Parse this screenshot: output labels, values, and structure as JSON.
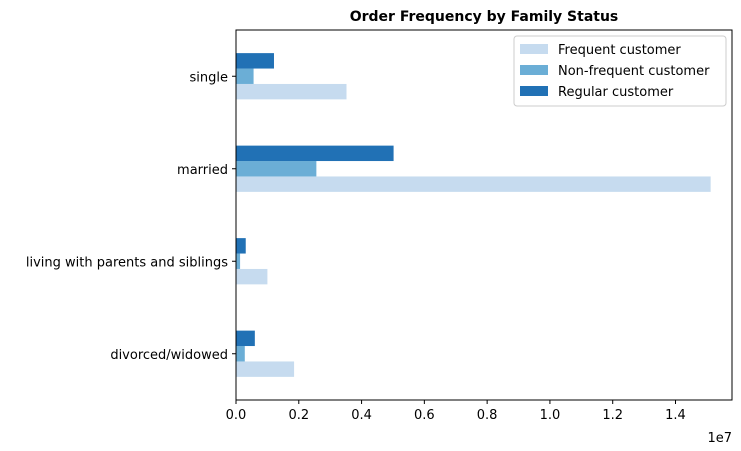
{
  "chart_data": {
    "type": "bar",
    "orientation": "horizontal",
    "title": "Order Frequency by Family Status",
    "xlabel": "",
    "ylabel": "",
    "x_offset_label": "1e7",
    "categories": [
      "divorced/widowed",
      "living with parents and siblings",
      "married",
      "single"
    ],
    "series": [
      {
        "name": "Frequent customer",
        "color": "#c6dbef",
        "values": [
          1850000,
          1000000,
          15120000,
          3520000
        ]
      },
      {
        "name": "Non-frequent customer",
        "color": "#6baed6",
        "values": [
          280000,
          130000,
          2560000,
          560000
        ]
      },
      {
        "name": "Regular customer",
        "color": "#2171b5",
        "values": [
          600000,
          310000,
          5020000,
          1210000
        ]
      }
    ],
    "xlim": [
      0,
      15800000
    ],
    "x_ticks": [
      0,
      2000000,
      4000000,
      6000000,
      8000000,
      10000000,
      12000000,
      14000000
    ],
    "x_tick_labels": [
      "0.0",
      "0.2",
      "0.4",
      "0.6",
      "0.8",
      "1.0",
      "1.2",
      "1.4"
    ],
    "grid": false,
    "legend_position": "top-right"
  }
}
